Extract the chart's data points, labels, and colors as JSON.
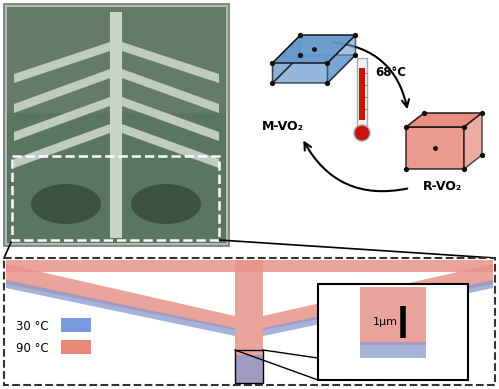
{
  "background_color": "#ffffff",
  "fig_width": 4.99,
  "fig_height": 3.89,
  "dpi": 100,
  "blue_crystal_color": "#6699cc",
  "red_crystal_color": "#e8897a",
  "crystal_edge_color": "#111111",
  "M_VO2_label": "M-VO₂",
  "R_VO2_label": "R-VO₂",
  "temp_label": "68°C",
  "legend_30": "30 °C",
  "legend_90": "90 °C",
  "blue_color": "#7799dd",
  "pink_color": "#e8897a",
  "scalebar_label": "1μm",
  "dashed_border_color": "#333333",
  "micro_bg_dark": "#4a5f50",
  "micro_bg_light": "#8aaa90",
  "micro_arm_color": "#c0ccc0",
  "micro_border": "#888888",
  "chevron_pink": "#e8948a",
  "chevron_blue": "#8899cc",
  "chevron_pink_alpha": 0.85,
  "chevron_blue_alpha": 0.75
}
